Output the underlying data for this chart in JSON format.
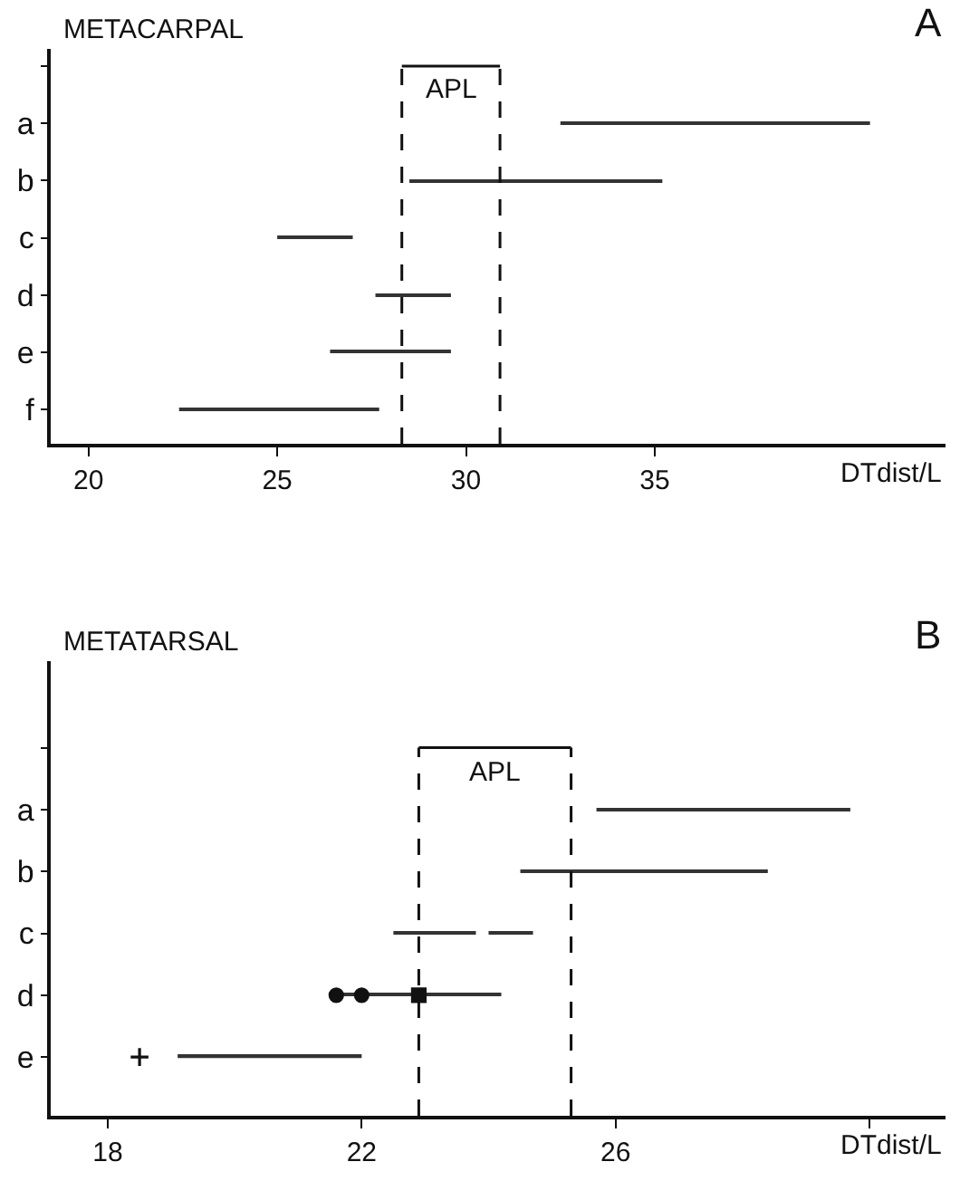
{
  "chart_data": [
    {
      "type": "bar",
      "orientation": "horizontal",
      "title": "METACARPAL",
      "xlabel": "DTdist/L",
      "categories": [
        null,
        "a",
        "b",
        "c",
        "d",
        "e",
        "f"
      ],
      "xlim": [
        19,
        42.7
      ],
      "xticks": [
        20,
        25,
        30,
        35
      ],
      "series": [
        {
          "color": "#333333",
          "base": [
            null,
            32.5,
            28.5,
            25.0,
            27.6,
            26.4,
            22.4
          ],
          "values": [
            null,
            8.2,
            6.7,
            2.0,
            2.0,
            3.2,
            5.3
          ]
        }
      ],
      "annotations": [
        "A",
        "APL"
      ],
      "ref_lines": [
        {
          "axis": "x",
          "value": 28.3,
          "line_style": "dashed"
        },
        {
          "axis": "x",
          "value": 30.9,
          "line_style": "dashed"
        }
      ]
    },
    {
      "type": "bar",
      "orientation": "horizontal",
      "title": "METATARSAL",
      "xlabel": "DTdist/L",
      "categories": [
        null,
        "a",
        "b",
        "c",
        "d",
        "e"
      ],
      "xlim": [
        17.1,
        31.2
      ],
      "xticks": [
        18,
        22,
        26,
        {
          "value": 30,
          "label": null
        }
      ],
      "series": [
        {
          "color": "#333333",
          "base": [
            null,
            25.7,
            24.5,
            22.5,
            21.5,
            19.1
          ],
          "values": [
            null,
            4.0,
            3.9,
            1.3,
            2.7,
            2.9
          ]
        },
        {
          "color": "#333333",
          "base": [
            null,
            null,
            null,
            24.0,
            null,
            null
          ],
          "values": [
            null,
            null,
            null,
            0.7,
            null,
            null
          ]
        },
        {
          "type": "scatter",
          "color": "#111111",
          "marker": "circle",
          "values": [
            null,
            null,
            null,
            null,
            21.6,
            null
          ]
        },
        {
          "type": "scatter",
          "color": "#111111",
          "marker": "circle",
          "values": [
            null,
            null,
            null,
            null,
            22.0,
            null
          ]
        },
        {
          "type": "scatter",
          "color": "#111111",
          "marker": "square",
          "values": [
            null,
            null,
            null,
            null,
            22.9,
            null
          ]
        },
        {
          "type": "scatter",
          "color": "#111111",
          "marker": "cross",
          "values": [
            null,
            null,
            null,
            null,
            null,
            18.5
          ]
        }
      ],
      "annotations": [
        "B",
        "APL"
      ],
      "ref_lines": [
        {
          "axis": "x",
          "value": 22.9,
          "line_style": "dashed"
        },
        {
          "axis": "x",
          "value": 25.3,
          "line_style": "dashed"
        }
      ]
    }
  ]
}
